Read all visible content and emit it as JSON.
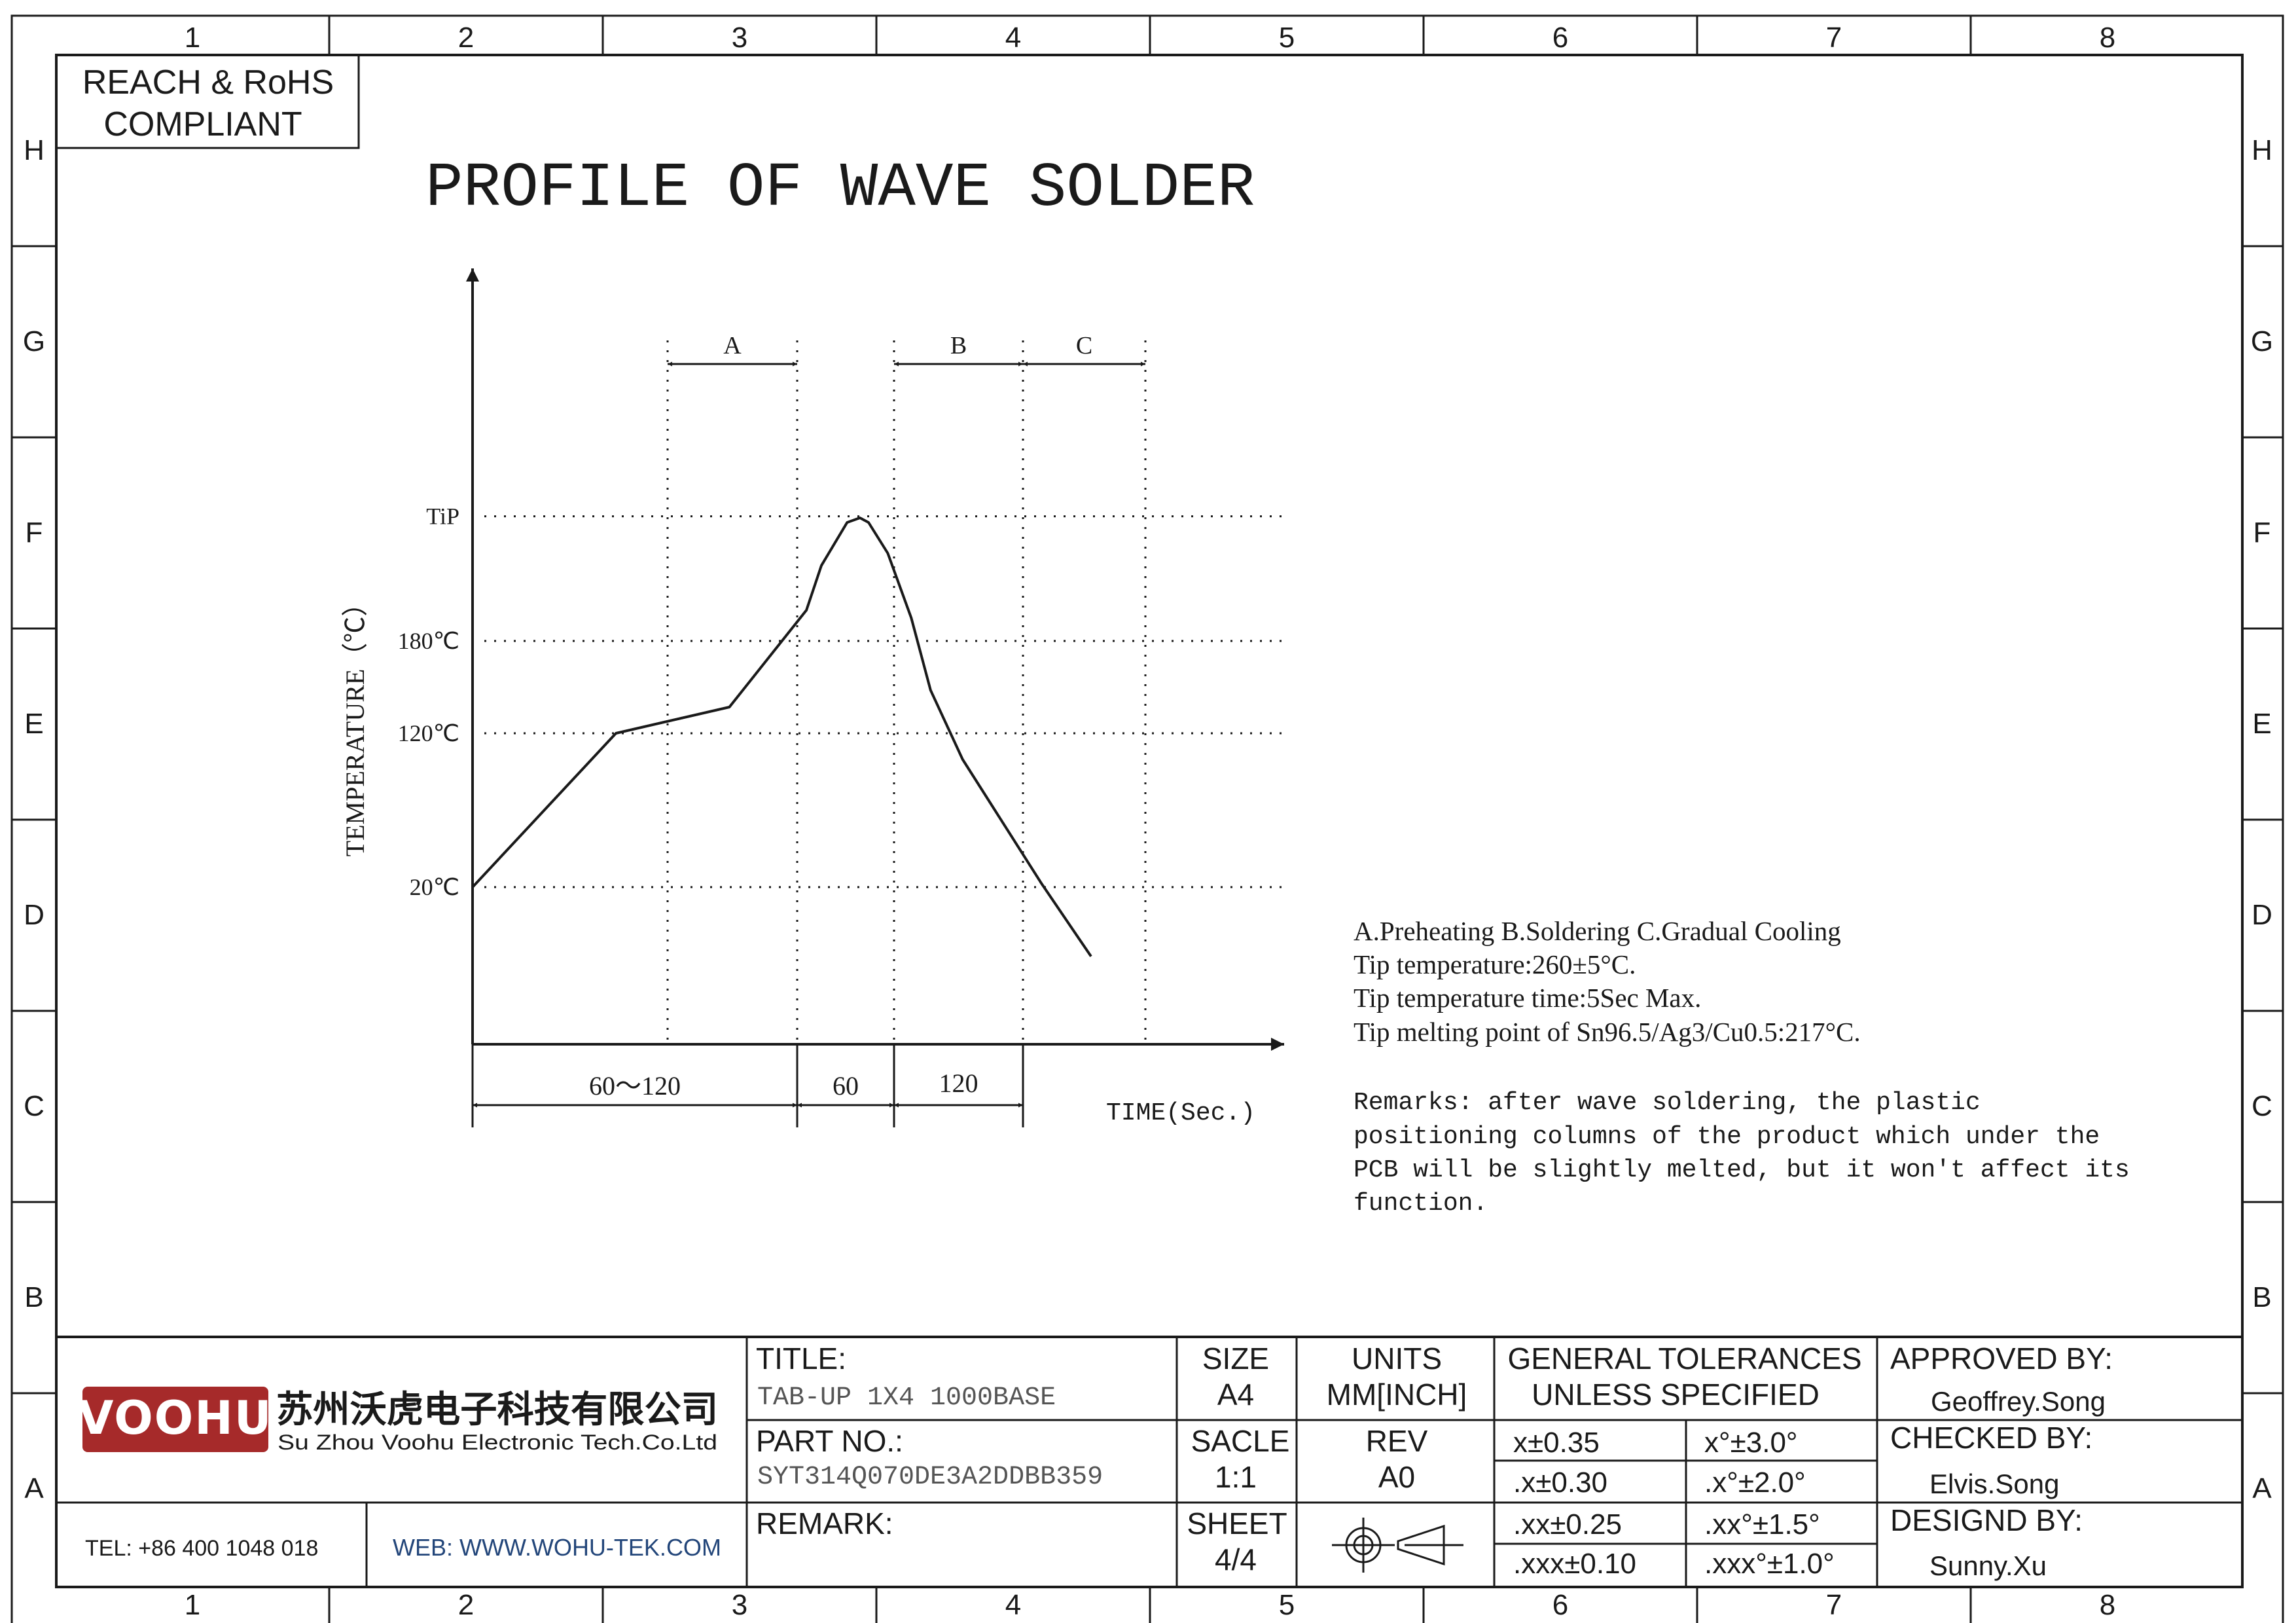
{
  "zone_columns": [
    "1",
    "2",
    "3",
    "4",
    "5",
    "6",
    "7",
    "8"
  ],
  "zone_rows": [
    "H",
    "G",
    "F",
    "E",
    "D",
    "C",
    "B",
    "A"
  ],
  "compliance": {
    "line1": "REACH & RoHS",
    "line2": "COMPLIANT"
  },
  "drawing_title": "PROFILE OF WAVE SOLDER",
  "chart_data": {
    "type": "line",
    "title": "",
    "ylabel": "TEMPERATURE（℃）",
    "xlabel": "TIME(Sec.)",
    "y_ticks": [
      "TiP",
      "180℃",
      "120℃",
      "20℃"
    ],
    "phases": [
      {
        "label": "A",
        "name": "Preheating"
      },
      {
        "label": "B",
        "name": "Soldering"
      },
      {
        "label": "C",
        "name": "Gradual Cooling"
      }
    ],
    "time_segments": [
      "60～120",
      "60",
      "120"
    ],
    "series": [
      {
        "points": [
          {
            "t": 0,
            "temp": 20
          },
          {
            "t": 67,
            "temp": 120
          },
          {
            "t": 120,
            "temp": 137
          },
          {
            "t": 156,
            "temp": 200
          },
          {
            "t": 163,
            "temp": 229
          },
          {
            "t": 175,
            "temp": 257
          },
          {
            "t": 181,
            "temp": 260
          },
          {
            "t": 185,
            "temp": 257
          },
          {
            "t": 194,
            "temp": 237
          },
          {
            "t": 205,
            "temp": 195
          },
          {
            "t": 214,
            "temp": 148
          },
          {
            "t": 229,
            "temp": 103
          },
          {
            "t": 266,
            "temp": 22
          },
          {
            "t": 289,
            "temp": -25
          }
        ]
      }
    ]
  },
  "notes": [
    "A.Preheating  B.Soldering  C.Gradual Cooling",
    "Tip temperature:260±5°C.",
    "Tip temperature time:5Sec Max.",
    "Tip melting point of Sn96.5/Ag3/Cu0.5:217°C."
  ],
  "remarks": [
    "Remarks: after wave soldering, the plastic",
    "positioning columns of the product  which under the",
    "PCB will be slightly melted, but it won't affect its",
    "function."
  ],
  "title_block": {
    "logo": "VOOHU",
    "company_cn": "苏州沃虎电子科技有限公司",
    "company_en": "Su Zhou Voohu Electronic Tech.Co.Ltd",
    "tel": "TEL: +86 400 1048 018",
    "web": "WEB: WWW.WOHU-TEK.COM",
    "title_label": "TITLE:",
    "title_value": "TAB-UP 1X4 1000BASE",
    "part_label": "PART NO.:",
    "part_value": "SYT314Q070DE3A2DDBB359",
    "remark_label": "REMARK:",
    "size_label": "SIZE",
    "size_value": "A4",
    "units_label": "UNITS",
    "units_value": "MM[INCH]",
    "scale_label": "SACLE",
    "scale_value": "1:1",
    "rev_label": "REV",
    "rev_value": "A0",
    "sheet_label": "SHEET",
    "sheet_value": "4/4",
    "tol_title1": "GENERAL TOLERANCES",
    "tol_title2": "UNLESS SPECIFIED",
    "tolerances": [
      [
        "x±0.35",
        "x°±3.0°"
      ],
      [
        ".x±0.30",
        ".x°±2.0°"
      ],
      [
        ".xx±0.25",
        ".xx°±1.5°"
      ],
      [
        ".xxx±0.10",
        ".xxx°±1.0°"
      ]
    ],
    "approved_label": "APPROVED BY:",
    "approved_value": "Geoffrey.Song",
    "checked_label": "CHECKED BY:",
    "checked_value": "Elvis.Song",
    "designed_label": "DESIGND BY:",
    "designed_value": "Sunny.Xu"
  }
}
